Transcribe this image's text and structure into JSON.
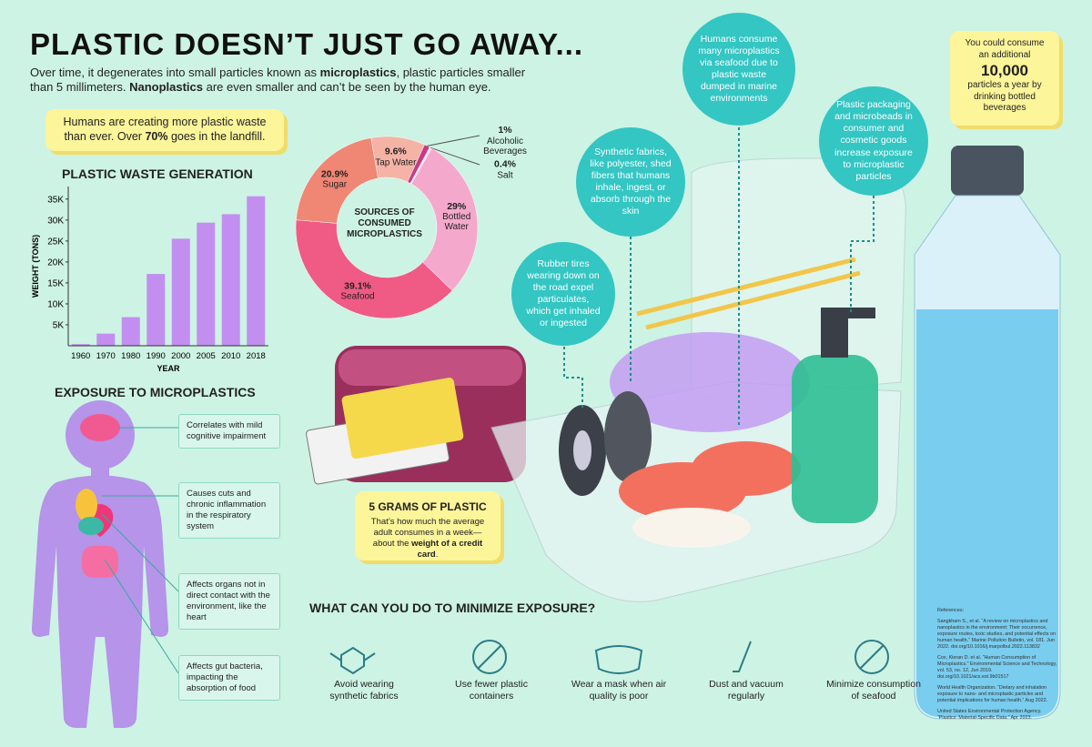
{
  "title": "PLASTIC DOESN’T JUST GO AWAY...",
  "intro": [
    "Over time, it degenerates into small particles known as ",
    "microplastics",
    ", plastic particles smaller than 5 millimeters. ",
    "Nanoplastics",
    " are even smaller and can’t be seen by the human eye."
  ],
  "landfill_note": [
    "Humans are creating more plastic waste than ever. Over ",
    "70%",
    " goes in the landfill."
  ],
  "chart_data": [
    {
      "type": "bar",
      "title": "PLASTIC WASTE GENERATION",
      "ylabel": "WEIGHT (TONS)",
      "xlabel": "YEAR",
      "categories": [
        "1960",
        "1970",
        "1980",
        "1990",
        "2000",
        "2005",
        "2010",
        "2018"
      ],
      "values": [
        390,
        2900,
        6830,
        17130,
        25550,
        29380,
        31400,
        35680
      ],
      "color": "#c28ff0",
      "ylim": [
        0,
        38000
      ],
      "yticks": [
        {
          "value": 5000,
          "label": "5K"
        },
        {
          "value": 10000,
          "label": "10K"
        },
        {
          "value": 15000,
          "label": "15K"
        },
        {
          "value": 20000,
          "label": "20K"
        },
        {
          "value": 25000,
          "label": "25K"
        },
        {
          "value": 30000,
          "label": "30K"
        },
        {
          "value": 35000,
          "label": "35K"
        }
      ]
    },
    {
      "type": "donut",
      "title": "SOURCES OF CONSUMED MICROPLASTICS",
      "categories": [
        "Tap Water",
        "Alcoholic Beverages",
        "Salt",
        "Bottled Water",
        "Seafood",
        "Sugar"
      ],
      "values": [
        9.6,
        1,
        0.4,
        29,
        39.1,
        20.9
      ],
      "value_labels": [
        "9.6%",
        "1%",
        "0.4%",
        "29%",
        "39.1%",
        "20.9%"
      ],
      "colors": [
        "#f5b3a6",
        "#c93a86",
        "#fbe3ee",
        "#f4a9cc",
        "#ef5b85",
        "#f08674"
      ]
    }
  ],
  "exposure": {
    "title": "EXPOSURE TO MICROPLASTICS",
    "effects": [
      "Correlates with mild cognitive impairment",
      "Causes cuts and chronic inflammation in the respiratory system",
      "Affects organs not in direct contact with the environment, like the heart",
      "Affects gut bacteria, impacting the absorption of food"
    ]
  },
  "bubbles": [
    "Rubber tires wearing down on the road expel particulates, which get inhaled or ingested",
    "Synthetic fabrics, like polyester, shed fibers that humans inhale, ingest, or absorb through the skin",
    "Humans consume many microplastics via seafood due to plastic waste dumped in marine environments",
    "Plastic packaging and microbeads in consumer and cosmetic goods increase exposure to microplastic particles"
  ],
  "bottle_note": [
    "You could consume an additional",
    "10,000",
    "particles a year by drinking bottled beverages"
  ],
  "credit_card_note": {
    "title": "5 GRAMS OF PLASTIC",
    "text": [
      "That’s how much the average adult consumes in a week—about the ",
      "weight of a credit card",
      "."
    ]
  },
  "minimize": {
    "title": "WHAT CAN YOU DO TO MINIMIZE EXPOSURE?",
    "actions": [
      "Avoid wearing synthetic fabrics",
      "Use fewer plastic containers",
      "Wear a mask when air quality is poor",
      "Dust and vacuum regularly",
      "Minimize consumption of seafood"
    ]
  },
  "references": {
    "title": "References:",
    "items": [
      "Sangkham S., et al. “A review on microplastics and nanoplastics in the environment: Their occurrence, exposure routes, toxic studies, and potential effects on human health.” Marine Pollution Bulletin, vol. 181. Jun 2022. doi.org/10.1016/j.marpolbul.2022.113832",
      "Cox, Kieran D. et al. “Human Consumption of Microplastics.” Environmental Science and Technology, vol. 53, no. 12, Jun 2019. doi.org/10.1021/acs.est.9b01517",
      "World Health Organization. “Dietary and inhalation exposure to nano- and microplastic particles and potential implications for human health.” Aug 2022.",
      "United States Environmental Protection Agency. “Plastics: Material-Specific Data.” Apr 2023."
    ]
  }
}
